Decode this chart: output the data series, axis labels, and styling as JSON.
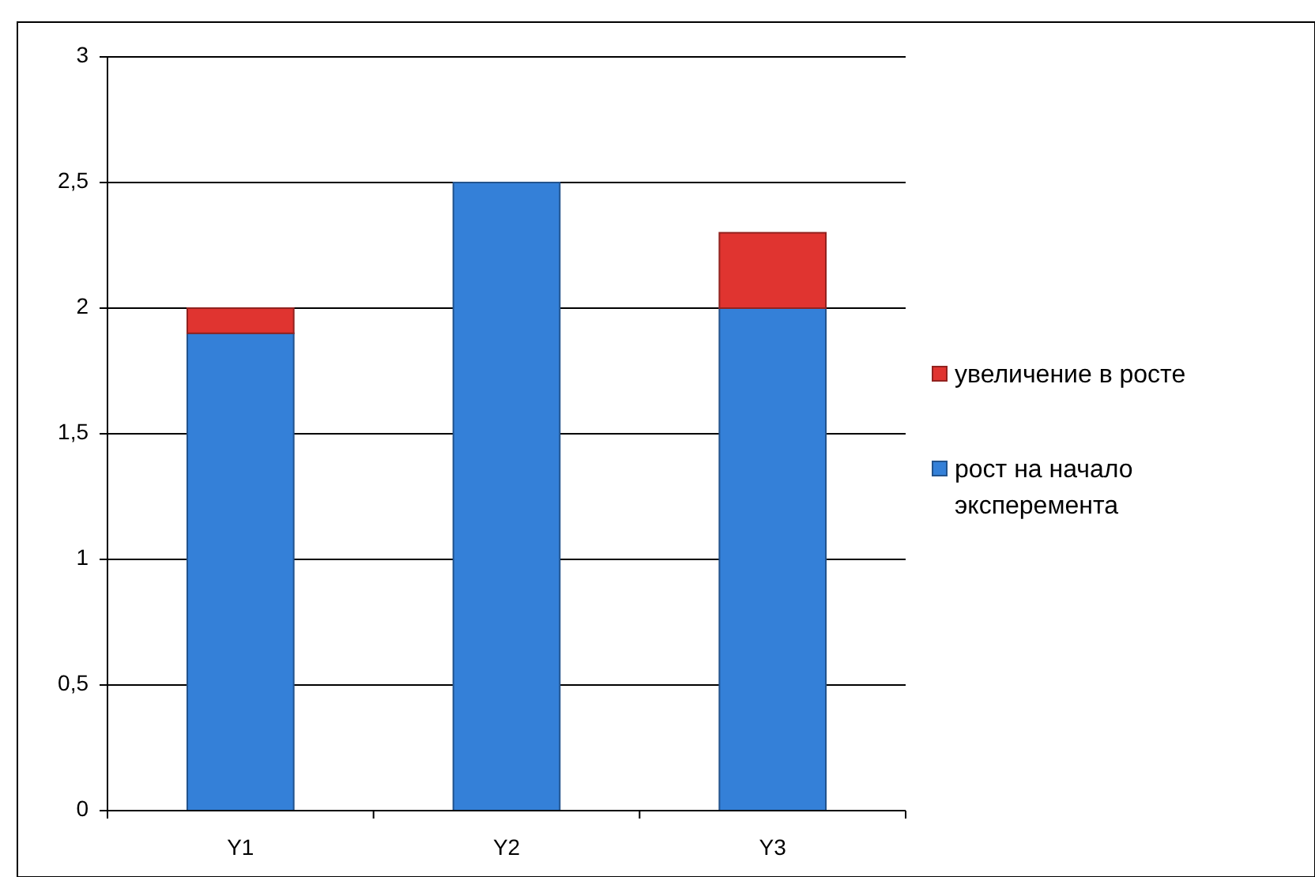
{
  "chart_data": {
    "type": "bar",
    "stacked": true,
    "categories": [
      "Y1",
      "Y2",
      "Y3"
    ],
    "series": [
      {
        "name": "рост на начало эксперемента",
        "color": "#3480d8",
        "values": [
          1.9,
          2.5,
          2
        ]
      },
      {
        "name": "увеличение в росте",
        "color": "#e03430",
        "values": [
          0.1,
          0,
          0.3
        ]
      }
    ],
    "ylim": [
      0,
      3
    ],
    "yticks": [
      0,
      {
        "value": 0.5,
        "label": "0,5"
      },
      1,
      {
        "value": 1.5,
        "label": "1,5"
      },
      2,
      {
        "value": 2.5,
        "label": "2,5"
      },
      3
    ],
    "grid": "y",
    "legend": "right"
  }
}
